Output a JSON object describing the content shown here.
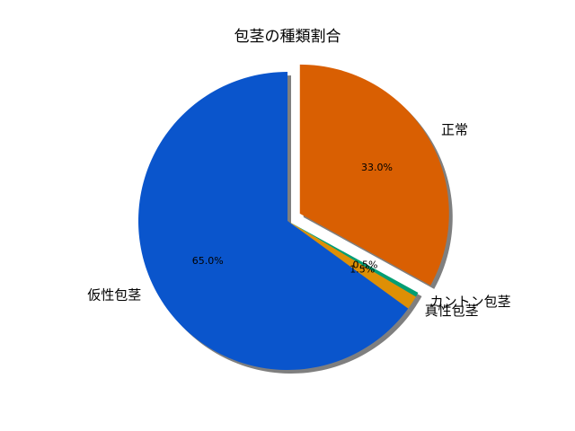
{
  "chart_data": {
    "type": "pie",
    "title": "包茎の種類割合",
    "slices": [
      {
        "label": "正常",
        "value": 33.0,
        "pct_label": "33.0%",
        "color": "#d95f02",
        "explode": true
      },
      {
        "label": "カントン包茎",
        "value": 0.5,
        "pct_label": "0.5%",
        "color": "#029e73",
        "explode": false
      },
      {
        "label": "真性包茎",
        "value": 1.5,
        "pct_label": "1.5%",
        "color": "#de8f05",
        "explode": false
      },
      {
        "label": "仮性包茎",
        "value": 65.0,
        "pct_label": "65.0%",
        "color": "#0a55cc",
        "explode": false
      }
    ],
    "start_angle_deg": 90,
    "direction": "clockwise",
    "shadow": true,
    "legend": "none"
  }
}
